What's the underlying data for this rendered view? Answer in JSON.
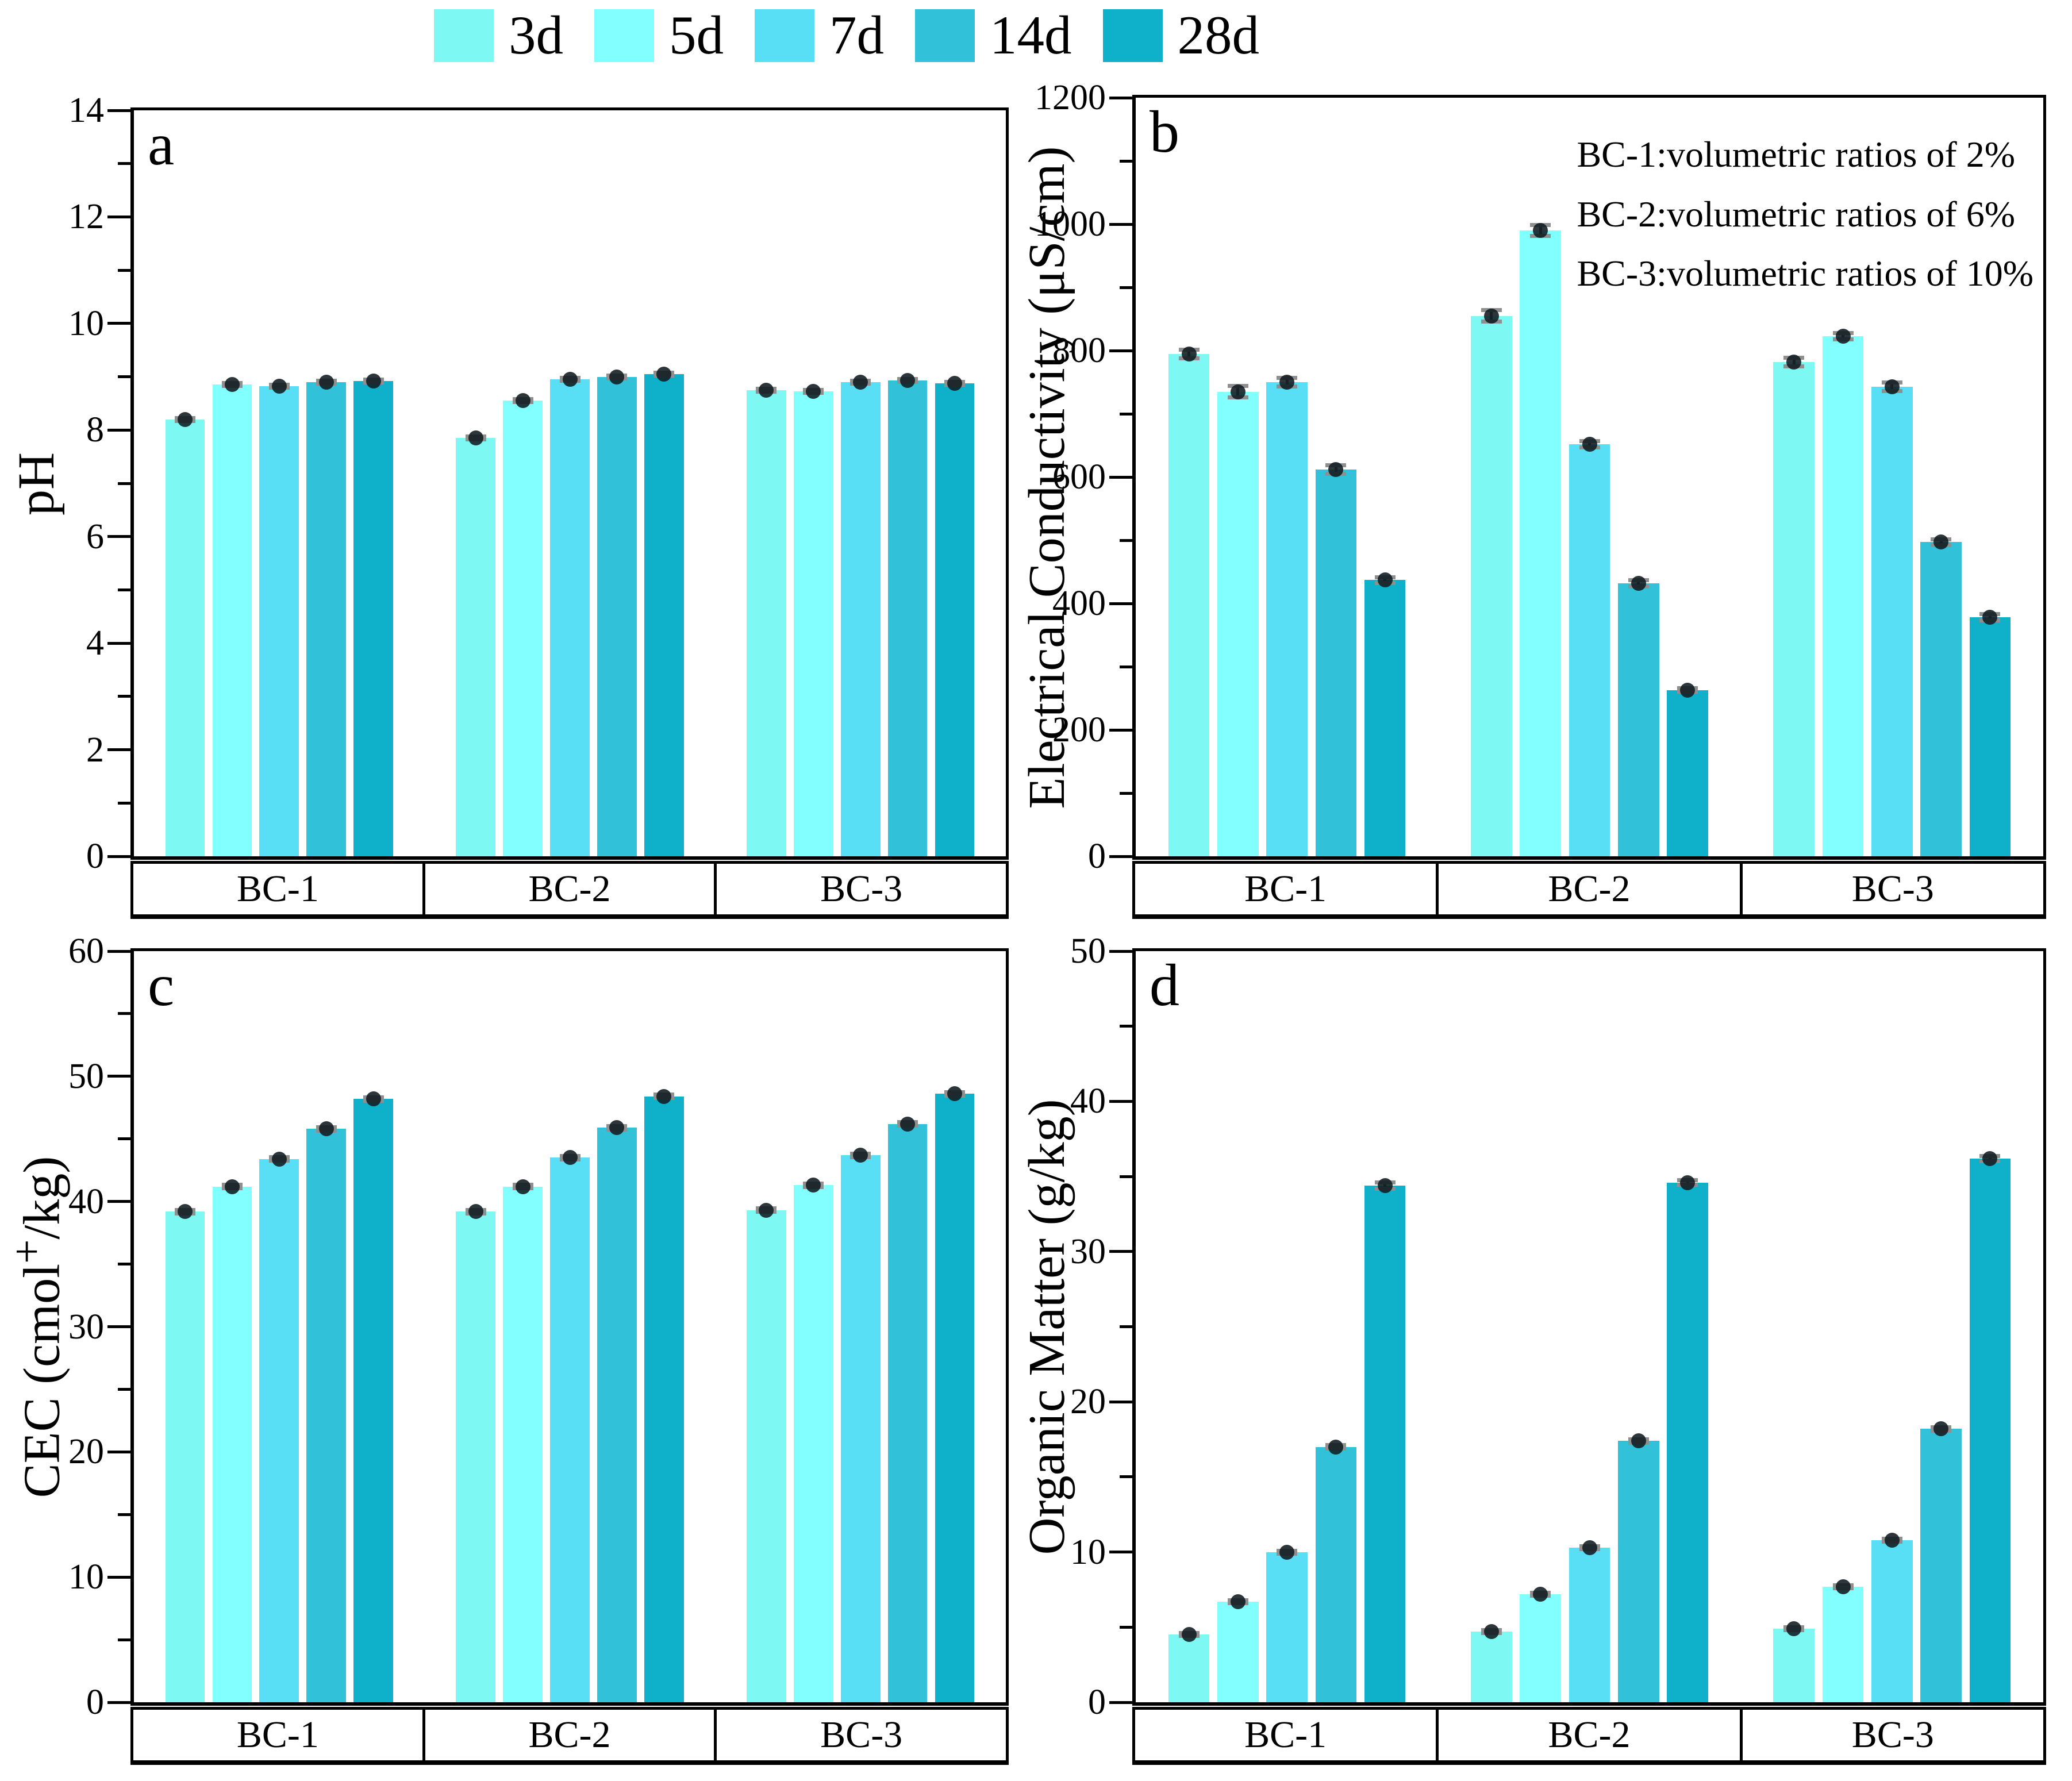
{
  "legend": {
    "items": [
      {
        "label": "3d",
        "color": "#7DF8F2"
      },
      {
        "label": "5d",
        "color": "#82FFFF"
      },
      {
        "label": "7d",
        "color": "#58DFF5"
      },
      {
        "label": "14d",
        "color": "#31C2D9"
      },
      {
        "label": "28d",
        "color": "#0FB0C9"
      }
    ]
  },
  "annotation": {
    "lines": [
      "BC-1:volumetric ratios of 2%",
      "BC-2:volumetric ratios of 6%",
      "BC-3:volumetric ratios of 10%"
    ]
  },
  "chart_data": [
    {
      "id": "a",
      "type": "bar",
      "letter": "a",
      "ylabel_parts": [
        "pH"
      ],
      "ylim": [
        0,
        14
      ],
      "ytick_step": 2,
      "grid": false,
      "categories": [
        "BC-1",
        "BC-2",
        "BC-3"
      ],
      "series": [
        {
          "name": "3d",
          "values": [
            8.2,
            7.85,
            8.75
          ],
          "errors": [
            0.06,
            0.06,
            0.05
          ]
        },
        {
          "name": "5d",
          "values": [
            8.85,
            8.55,
            8.73
          ],
          "errors": [
            0.06,
            0.06,
            0.06
          ]
        },
        {
          "name": "7d",
          "values": [
            8.82,
            8.95,
            8.9
          ],
          "errors": [
            0.06,
            0.06,
            0.06
          ]
        },
        {
          "name": "14d",
          "values": [
            8.9,
            9.0,
            8.93
          ],
          "errors": [
            0.06,
            0.05,
            0.06
          ]
        },
        {
          "name": "28d",
          "values": [
            8.92,
            9.05,
            8.88
          ],
          "errors": [
            0.06,
            0.05,
            0.05
          ]
        }
      ]
    },
    {
      "id": "b",
      "type": "bar",
      "letter": "b",
      "ylabel_parts": [
        "Electrical Conductivity (μS/cm)"
      ],
      "ylim": [
        0,
        1200
      ],
      "ytick_step": 200,
      "grid": false,
      "categories": [
        "BC-1",
        "BC-2",
        "BC-3"
      ],
      "series": [
        {
          "name": "3d",
          "values": [
            795,
            855,
            782
          ],
          "errors": [
            10,
            12,
            10
          ]
        },
        {
          "name": "5d",
          "values": [
            735,
            990,
            823
          ],
          "errors": [
            12,
            12,
            8
          ]
        },
        {
          "name": "7d",
          "values": [
            750,
            652,
            743
          ],
          "errors": [
            10,
            8,
            10
          ]
        },
        {
          "name": "14d",
          "values": [
            612,
            432,
            497
          ],
          "errors": [
            10,
            8,
            8
          ]
        },
        {
          "name": "28d",
          "values": [
            437,
            263,
            378
          ],
          "errors": [
            8,
            6,
            8
          ]
        }
      ]
    },
    {
      "id": "c",
      "type": "bar",
      "letter": "c",
      "ylabel_parts": [
        "CEC (cmol",
        {
          "sup": "+"
        },
        "/kg)"
      ],
      "ylim": [
        0,
        60
      ],
      "ytick_step": 10,
      "grid": false,
      "categories": [
        "BC-1",
        "BC-2",
        "BC-3"
      ],
      "series": [
        {
          "name": "3d",
          "values": [
            39.2,
            39.2,
            39.3
          ],
          "errors": [
            0.3,
            0.3,
            0.3
          ]
        },
        {
          "name": "5d",
          "values": [
            41.2,
            41.2,
            41.3
          ],
          "errors": [
            0.3,
            0.3,
            0.3
          ]
        },
        {
          "name": "7d",
          "values": [
            43.4,
            43.5,
            43.7
          ],
          "errors": [
            0.3,
            0.3,
            0.3
          ]
        },
        {
          "name": "14d",
          "values": [
            45.8,
            45.9,
            46.2
          ],
          "errors": [
            0.3,
            0.3,
            0.3
          ]
        },
        {
          "name": "28d",
          "values": [
            48.2,
            48.4,
            48.6
          ],
          "errors": [
            0.3,
            0.3,
            0.3
          ]
        }
      ]
    },
    {
      "id": "d",
      "type": "bar",
      "letter": "d",
      "ylabel_parts": [
        "Organic Matter (g/kg)"
      ],
      "ylim": [
        0,
        50
      ],
      "ytick_step": 10,
      "grid": false,
      "categories": [
        "BC-1",
        "BC-2",
        "BC-3"
      ],
      "series": [
        {
          "name": "3d",
          "values": [
            4.5,
            4.7,
            4.9
          ],
          "errors": [
            0.15,
            0.15,
            0.15
          ]
        },
        {
          "name": "5d",
          "values": [
            6.7,
            7.2,
            7.7
          ],
          "errors": [
            0.15,
            0.15,
            0.15
          ]
        },
        {
          "name": "7d",
          "values": [
            10.0,
            10.3,
            10.8
          ],
          "errors": [
            0.2,
            0.2,
            0.2
          ]
        },
        {
          "name": "14d",
          "values": [
            17.0,
            17.4,
            18.2
          ],
          "errors": [
            0.25,
            0.25,
            0.25
          ]
        },
        {
          "name": "28d",
          "values": [
            34.4,
            34.6,
            36.2
          ],
          "errors": [
            0.35,
            0.3,
            0.3
          ]
        }
      ]
    }
  ]
}
